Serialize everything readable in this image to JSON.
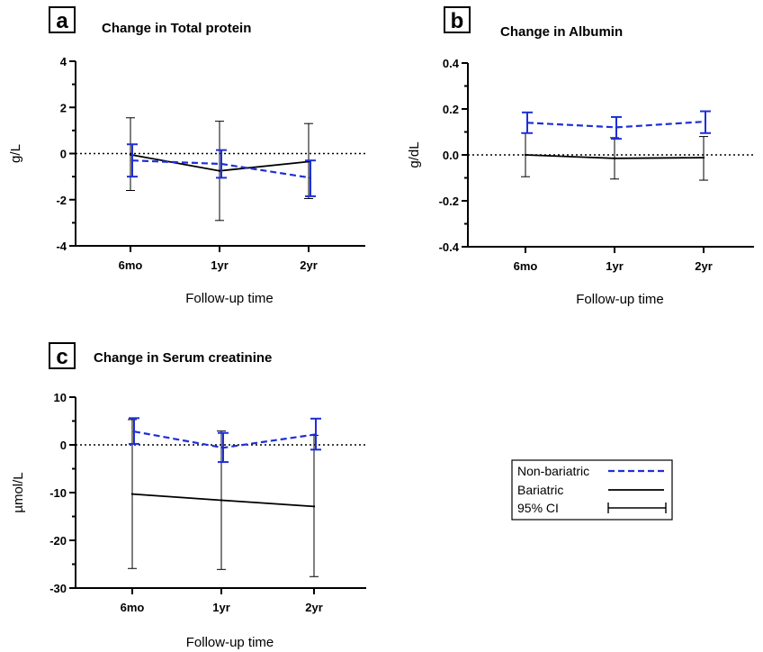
{
  "colors": {
    "non_bariatric": "#1f2fd6",
    "bariatric": "#000000"
  },
  "legend": {
    "items": [
      {
        "key": "non_bariatric",
        "label": "Non-bariatric"
      },
      {
        "key": "bariatric",
        "label": "Bariatric"
      },
      {
        "key": "ci",
        "label": "95% CI"
      }
    ]
  },
  "chart_data": [
    {
      "panel": "a",
      "type": "line",
      "title": "Change in Total protein",
      "xlabel": "Follow-up time",
      "ylabel": "g/L",
      "categories": [
        "6mo",
        "1yr",
        "2yr"
      ],
      "ylim": [
        -4,
        4
      ],
      "yticks": [
        -4,
        -2,
        0,
        2,
        4
      ],
      "ytick_labels": [
        "-4",
        "-2",
        "0",
        "2",
        "4"
      ],
      "series": [
        {
          "key": "non_bariatric",
          "values": [
            -0.3,
            -0.45,
            -1.05
          ],
          "ci_low": [
            -1.0,
            -1.05,
            -1.85
          ],
          "ci_high": [
            0.4,
            0.15,
            -0.3
          ]
        },
        {
          "key": "bariatric",
          "values": [
            -0.05,
            -0.75,
            -0.35
          ],
          "ci_low": [
            -1.6,
            -2.9,
            -1.95
          ],
          "ci_high": [
            1.55,
            1.4,
            1.3
          ]
        }
      ]
    },
    {
      "panel": "b",
      "type": "line",
      "title": "Change in Albumin",
      "xlabel": "Follow-up time",
      "ylabel": "g/dL",
      "categories": [
        "6mo",
        "1yr",
        "2yr"
      ],
      "ylim": [
        -0.4,
        0.4
      ],
      "yticks": [
        -0.4,
        -0.2,
        0.0,
        0.2,
        0.4
      ],
      "ytick_labels": [
        "-0.4",
        "-0.2",
        "0.0",
        "0.2",
        "0.4"
      ],
      "series": [
        {
          "key": "non_bariatric",
          "values": [
            0.14,
            0.12,
            0.145
          ],
          "ci_low": [
            0.095,
            0.07,
            0.095
          ],
          "ci_high": [
            0.185,
            0.165,
            0.19
          ]
        },
        {
          "key": "bariatric",
          "values": [
            0.0,
            -0.015,
            -0.012
          ],
          "ci_low": [
            -0.095,
            -0.105,
            -0.11
          ],
          "ci_high": [
            0.095,
            0.075,
            0.08
          ]
        }
      ]
    },
    {
      "panel": "c",
      "type": "line",
      "title": "Change in Serum creatinine",
      "xlabel": "Follow-up time",
      "ylabel": "µmol/L",
      "categories": [
        "6mo",
        "1yr",
        "2yr"
      ],
      "ylim": [
        -30,
        10
      ],
      "yticks": [
        -30,
        -20,
        -10,
        0,
        10
      ],
      "ytick_labels": [
        "-30",
        "-20",
        "-10",
        "0",
        "10"
      ],
      "series": [
        {
          "key": "non_bariatric",
          "values": [
            2.8,
            -0.6,
            2.2
          ],
          "ci_low": [
            0.2,
            -3.6,
            -1.0
          ],
          "ci_high": [
            5.6,
            2.5,
            5.5
          ]
        },
        {
          "key": "bariatric",
          "values": [
            -10.3,
            -11.6,
            -12.9
          ],
          "ci_low": [
            -25.9,
            -26.1,
            -27.6
          ],
          "ci_high": [
            5.3,
            2.9,
            2.0
          ]
        }
      ]
    }
  ]
}
